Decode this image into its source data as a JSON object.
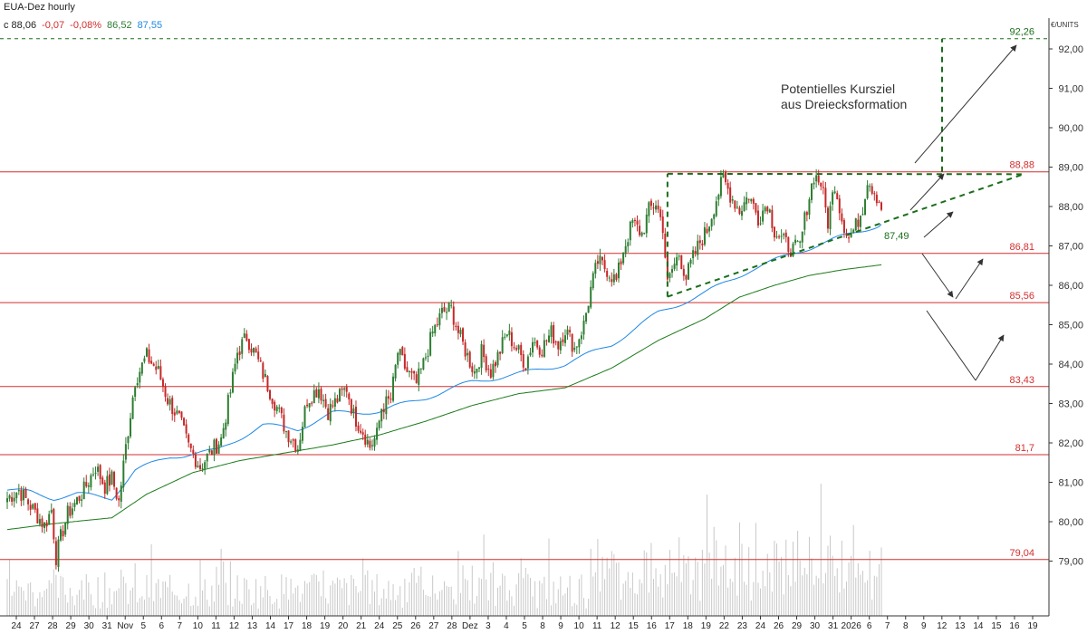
{
  "header": {
    "title": "EUA-Dez hourly",
    "close_label": "c 88,06",
    "change_abs": "-0,07",
    "change_pct": "-0,08%",
    "ma_slow_value": "86,52",
    "ma_fast_value": "87,55"
  },
  "colors": {
    "candle_up": "#2e7d32",
    "candle_down": "#c62828",
    "ma_fast": "#1e88e5",
    "ma_slow": "#1b7a1b",
    "level_line": "#d32f2f",
    "pattern": "#1b6e1b",
    "volume": "#c8c8c8",
    "arrows": "#333333"
  },
  "chart_data": {
    "type": "candlestick",
    "instrument": "EUA-Dez",
    "timeframe": "hourly",
    "y_axis_unit": "€/UNITS",
    "ylim": [
      78.3,
      93.0
    ],
    "y_ticks": [
      79.0,
      80.0,
      81.0,
      82.0,
      83.0,
      84.0,
      85.0,
      86.0,
      87.0,
      88.0,
      89.0,
      90.0,
      91.0,
      92.0
    ],
    "y_tick_labels": [
      "79,00",
      "80,00",
      "81,00",
      "82,00",
      "83,00",
      "84,00",
      "85,00",
      "86,00",
      "87,00",
      "88,00",
      "89,00",
      "90,00",
      "91,00",
      "92,00"
    ],
    "x_tick_labels": [
      "24",
      "27",
      "28",
      "29",
      "30",
      "31",
      "Nov",
      "5",
      "6",
      "7",
      "10",
      "11",
      "12",
      "13",
      "14",
      "17",
      "18",
      "19",
      "20",
      "21",
      "24",
      "25",
      "26",
      "27",
      "28",
      "Dez",
      "3",
      "4",
      "5",
      "8",
      "9",
      "10",
      "11",
      "12",
      "15",
      "16",
      "17",
      "18",
      "19",
      "22",
      "23",
      "24",
      "26",
      "29",
      "30",
      "31",
      "2026",
      "6",
      "7",
      "8",
      "9",
      "12",
      "13",
      "14",
      "15",
      "16",
      "19"
    ],
    "price_anchors": [
      [
        0,
        80.6
      ],
      [
        5,
        80.8
      ],
      [
        10,
        80.4
      ],
      [
        16,
        79.9
      ],
      [
        19,
        80.3
      ],
      [
        21,
        79.1
      ],
      [
        23,
        79.6
      ],
      [
        26,
        80.2
      ],
      [
        33,
        80.8
      ],
      [
        38,
        81.4
      ],
      [
        42,
        80.9
      ],
      [
        45,
        81.1
      ],
      [
        48,
        80.5
      ],
      [
        51,
        81.9
      ],
      [
        55,
        83.6
      ],
      [
        60,
        84.2
      ],
      [
        65,
        83.8
      ],
      [
        69,
        83.1
      ],
      [
        74,
        82.6
      ],
      [
        78,
        81.9
      ],
      [
        83,
        81.4
      ],
      [
        88,
        81.8
      ],
      [
        92,
        82.1
      ],
      [
        96,
        83.3
      ],
      [
        99,
        84.3
      ],
      [
        103,
        84.7
      ],
      [
        107,
        84.2
      ],
      [
        111,
        83.6
      ],
      [
        116,
        82.9
      ],
      [
        120,
        82.3
      ],
      [
        125,
        81.9
      ],
      [
        129,
        83.1
      ],
      [
        134,
        83.4
      ],
      [
        138,
        82.8
      ],
      [
        142,
        83.1
      ],
      [
        146,
        83.4
      ],
      [
        149,
        82.7
      ],
      [
        153,
        82.3
      ],
      [
        156,
        81.9
      ],
      [
        159,
        82.2
      ],
      [
        161,
        82.9
      ],
      [
        165,
        83.1
      ],
      [
        168,
        84.3
      ],
      [
        172,
        83.8
      ],
      [
        176,
        83.5
      ],
      [
        179,
        84.0
      ],
      [
        183,
        84.8
      ],
      [
        187,
        85.3
      ],
      [
        191,
        85.4
      ],
      [
        194,
        84.8
      ],
      [
        198,
        84.2
      ],
      [
        201,
        83.8
      ],
      [
        204,
        84.3
      ],
      [
        208,
        83.8
      ],
      [
        211,
        84.2
      ],
      [
        215,
        84.8
      ],
      [
        219,
        84.4
      ],
      [
        223,
        84.0
      ],
      [
        226,
        84.6
      ],
      [
        230,
        84.4
      ],
      [
        234,
        84.8
      ],
      [
        237,
        84.5
      ],
      [
        240,
        84.9
      ],
      [
        244,
        84.4
      ],
      [
        248,
        85.0
      ],
      [
        251,
        85.9
      ],
      [
        254,
        86.6
      ],
      [
        258,
        86.4
      ],
      [
        262,
        86.1
      ],
      [
        265,
        86.9
      ],
      [
        269,
        87.6
      ],
      [
        273,
        87.3
      ],
      [
        276,
        87.9
      ],
      [
        279,
        88.1
      ],
      [
        282,
        87.5
      ],
      [
        284,
        86.0
      ],
      [
        286,
        86.4
      ],
      [
        289,
        86.8
      ],
      [
        292,
        86.2
      ],
      [
        295,
        86.7
      ],
      [
        298,
        87.1
      ],
      [
        301,
        87.4
      ],
      [
        305,
        88.2
      ],
      [
        308,
        88.7
      ],
      [
        311,
        88.3
      ],
      [
        315,
        87.9
      ],
      [
        319,
        88.3
      ],
      [
        323,
        87.7
      ],
      [
        327,
        88.1
      ],
      [
        330,
        87.4
      ],
      [
        334,
        87.1
      ],
      [
        338,
        86.9
      ],
      [
        341,
        87.0
      ],
      [
        344,
        88.0
      ],
      [
        347,
        88.8
      ],
      [
        350,
        88.6
      ],
      [
        353,
        87.6
      ],
      [
        356,
        88.6
      ],
      [
        359,
        87.7
      ],
      [
        362,
        87.2
      ],
      [
        365,
        87.5
      ],
      [
        368,
        88.0
      ],
      [
        370,
        88.7
      ],
      [
        373,
        88.4
      ],
      [
        376,
        88.0
      ]
    ],
    "moving_averages": [
      {
        "name": "86,52",
        "color": "#1b7a1b",
        "points": [
          [
            0,
            79.8
          ],
          [
            20,
            79.95
          ],
          [
            45,
            80.1
          ],
          [
            60,
            80.7
          ],
          [
            80,
            81.25
          ],
          [
            100,
            81.55
          ],
          [
            120,
            81.75
          ],
          [
            140,
            81.95
          ],
          [
            160,
            82.2
          ],
          [
            180,
            82.55
          ],
          [
            200,
            82.95
          ],
          [
            220,
            83.25
          ],
          [
            240,
            83.4
          ],
          [
            260,
            83.9
          ],
          [
            280,
            84.6
          ],
          [
            300,
            85.15
          ],
          [
            315,
            85.7
          ],
          [
            330,
            86.0
          ],
          [
            345,
            86.25
          ],
          [
            360,
            86.4
          ],
          [
            376,
            86.52
          ]
        ]
      },
      {
        "name": "87,55",
        "color": "#1e88e5",
        "points": [
          [
            0,
            80.8
          ],
          [
            10,
            80.75
          ],
          [
            20,
            80.6
          ],
          [
            30,
            80.7
          ],
          [
            45,
            80.6
          ],
          [
            55,
            81.3
          ],
          [
            70,
            81.65
          ],
          [
            90,
            81.8
          ],
          [
            110,
            82.45
          ],
          [
            125,
            82.35
          ],
          [
            140,
            82.75
          ],
          [
            160,
            82.8
          ],
          [
            180,
            83.15
          ],
          [
            200,
            83.55
          ],
          [
            220,
            83.75
          ],
          [
            240,
            84.0
          ],
          [
            260,
            84.5
          ],
          [
            280,
            85.3
          ],
          [
            300,
            85.8
          ],
          [
            320,
            86.4
          ],
          [
            340,
            86.85
          ],
          [
            360,
            87.25
          ],
          [
            376,
            87.55
          ]
        ]
      }
    ],
    "horizontal_levels": [
      {
        "value": 88.88,
        "label": "88,88"
      },
      {
        "value": 86.81,
        "label": "86,81"
      },
      {
        "value": 85.56,
        "label": "85,56"
      },
      {
        "value": 83.43,
        "label": "83,43"
      },
      {
        "value": 81.7,
        "label": "81,7"
      },
      {
        "value": 79.04,
        "label": "79,04"
      }
    ],
    "target_level": {
      "value": 92.26,
      "label": "92,26"
    },
    "triangle_label": "87,49",
    "annotation": [
      "Potentielles Kursziel",
      "aus Dreiecksformation"
    ],
    "volume": {
      "note": "hourly volume bars at chart bottom",
      "max_relative": 1.0
    },
    "grid": false,
    "legend": "none"
  }
}
